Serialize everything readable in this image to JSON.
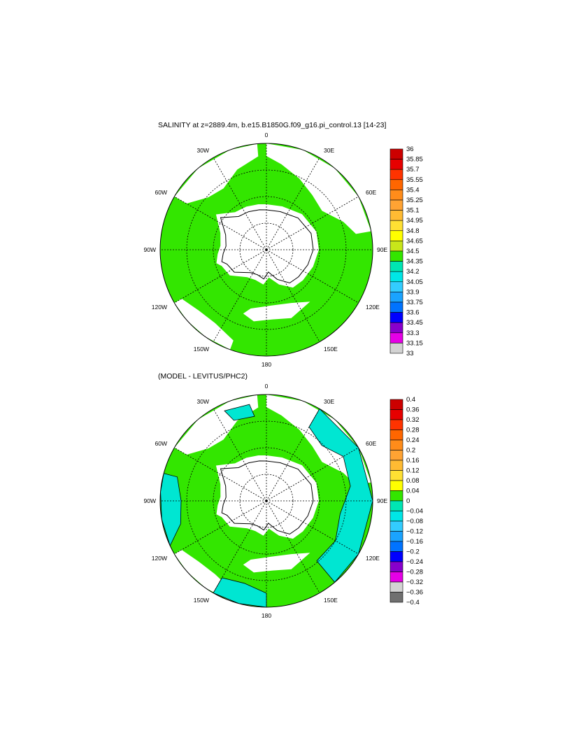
{
  "panels": [
    {
      "title": "SALINITY at z=2889.4m, b.e15.B1850G.f09_g16.pi_control.13 [14-23]",
      "lon_labels": [
        "0",
        "30E",
        "60E",
        "90E",
        "120E",
        "150E",
        "180",
        "150W",
        "120W",
        "90W",
        "60W",
        "30W"
      ],
      "colorbar": {
        "labels": [
          "36",
          "35.85",
          "35.7",
          "35.55",
          "35.4",
          "35.25",
          "35.1",
          "34.95",
          "34.8",
          "34.65",
          "34.5",
          "34.35",
          "34.2",
          "34.05",
          "33.9",
          "33.75",
          "33.6",
          "33.45",
          "33.3",
          "33.15",
          "33"
        ],
        "colors": [
          "#cc0000",
          "#e60000",
          "#ff3300",
          "#ff6600",
          "#ff8c1a",
          "#ffa333",
          "#ffbb33",
          "#ffe033",
          "#ffff00",
          "#c8e61a",
          "#33e600",
          "#00e6b3",
          "#00e6e6",
          "#33ccff",
          "#1aa3ff",
          "#0073ff",
          "#0000ff",
          "#8800cc",
          "#e600e6",
          "#d3d3d3"
        ]
      },
      "fill_color": "#33e600"
    },
    {
      "title": "(MODEL - LEVITUS/PHC2)",
      "lon_labels": [
        "0",
        "30E",
        "60E",
        "90E",
        "120E",
        "150E",
        "180",
        "150W",
        "120W",
        "90W",
        "60W",
        "30W"
      ],
      "colorbar": {
        "labels": [
          "0.4",
          "0.36",
          "0.32",
          "0.28",
          "0.24",
          "0.2",
          "0.16",
          "0.12",
          "0.08",
          "0.04",
          "0",
          "−0.04",
          "−0.08",
          "−0.12",
          "−0.16",
          "−0.2",
          "−0.24",
          "−0.28",
          "−0.32",
          "−0.36",
          "−0.4"
        ],
        "colors": [
          "#cc0000",
          "#e60000",
          "#ff3300",
          "#ff6600",
          "#ff8c1a",
          "#ffa333",
          "#ffbb33",
          "#ffe033",
          "#ffff00",
          "#33e600",
          "#00e6b3",
          "#00e6e6",
          "#33ccff",
          "#1aa3ff",
          "#0073ff",
          "#0000ff",
          "#8800cc",
          "#e600e6",
          "#d3d3d3",
          "#707070"
        ]
      },
      "fill_color": "#33e600",
      "secondary_color": "#00e6d2"
    }
  ]
}
